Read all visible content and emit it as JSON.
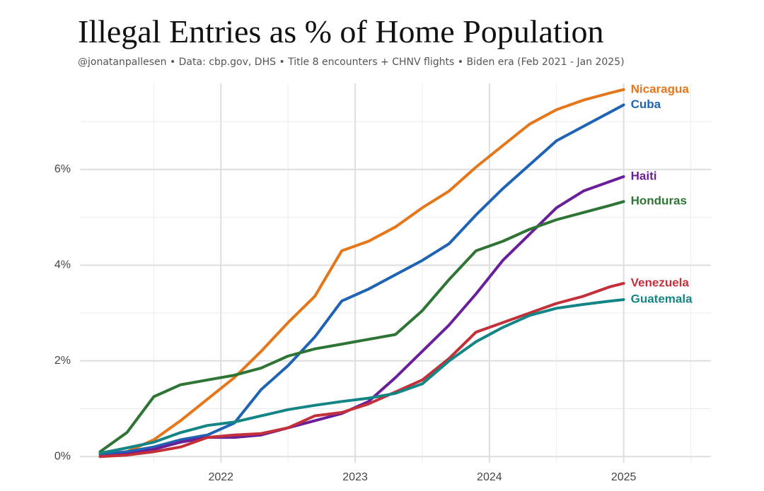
{
  "chart_data": {
    "type": "line",
    "title": "Illegal Entries as % of Home Population",
    "subtitle": "@jonatanpallesen  •  Data: cbp.gov, DHS  •  Title 8 encounters + CHNV flights  •  Biden era (Feb 2021 - Jan 2025)",
    "x": [
      2021.1,
      2021.3,
      2021.5,
      2021.7,
      2021.9,
      2022.1,
      2022.3,
      2022.5,
      2022.7,
      2022.9,
      2023.1,
      2023.3,
      2023.5,
      2023.7,
      2023.9,
      2024.1,
      2024.3,
      2024.5,
      2024.7,
      2024.9,
      2025.0
    ],
    "series": [
      {
        "name": "Nicaragua",
        "color": "#e5761a",
        "values": [
          0.0,
          0.1,
          0.35,
          0.75,
          1.2,
          1.65,
          2.2,
          2.8,
          3.35,
          4.3,
          4.5,
          4.8,
          5.2,
          5.55,
          6.05,
          6.5,
          6.95,
          7.25,
          7.45,
          7.6,
          7.67
        ]
      },
      {
        "name": "Cuba",
        "color": "#1f63b4",
        "values": [
          0.05,
          0.1,
          0.2,
          0.35,
          0.45,
          0.7,
          1.4,
          1.9,
          2.5,
          3.25,
          3.5,
          3.8,
          4.1,
          4.45,
          5.05,
          5.6,
          6.1,
          6.6,
          6.9,
          7.2,
          7.35
        ]
      },
      {
        "name": "Haiti",
        "color": "#6a1f9a",
        "values": [
          0.0,
          0.05,
          0.15,
          0.3,
          0.4,
          0.4,
          0.45,
          0.6,
          0.75,
          0.9,
          1.15,
          1.65,
          2.2,
          2.75,
          3.4,
          4.1,
          4.65,
          5.2,
          5.55,
          5.75,
          5.85
        ]
      },
      {
        "name": "Honduras",
        "color": "#2e7434",
        "values": [
          0.1,
          0.5,
          1.25,
          1.5,
          1.6,
          1.7,
          1.85,
          2.1,
          2.25,
          2.35,
          2.45,
          2.55,
          3.05,
          3.7,
          4.3,
          4.5,
          4.75,
          4.95,
          5.1,
          5.25,
          5.33
        ]
      },
      {
        "name": "Venezuela",
        "color": "#c4303a",
        "values": [
          0.0,
          0.03,
          0.1,
          0.2,
          0.4,
          0.45,
          0.48,
          0.6,
          0.85,
          0.92,
          1.1,
          1.35,
          1.6,
          2.05,
          2.6,
          2.8,
          3.0,
          3.2,
          3.35,
          3.55,
          3.62
        ]
      },
      {
        "name": "Guatemala",
        "color": "#148585",
        "values": [
          0.07,
          0.18,
          0.3,
          0.5,
          0.65,
          0.72,
          0.85,
          0.98,
          1.07,
          1.15,
          1.22,
          1.32,
          1.52,
          2.0,
          2.4,
          2.7,
          2.95,
          3.1,
          3.18,
          3.25,
          3.28
        ]
      }
    ],
    "xlim": [
      2020.95,
      2025.65
    ],
    "xticks": [
      2022,
      2023,
      2024,
      2025
    ],
    "minor_xticks": [
      2021.5,
      2022.5,
      2023.5,
      2024.5,
      2025.5
    ],
    "ylim": [
      -0.13,
      7.8
    ],
    "yticks": [
      {
        "value": 0,
        "label": "0%"
      },
      {
        "value": 2,
        "label": "2%"
      },
      {
        "value": 4,
        "label": "4%"
      },
      {
        "value": 6,
        "label": "6%"
      }
    ],
    "minor_yticks": [
      1,
      3,
      5,
      7
    ],
    "grid": true
  }
}
